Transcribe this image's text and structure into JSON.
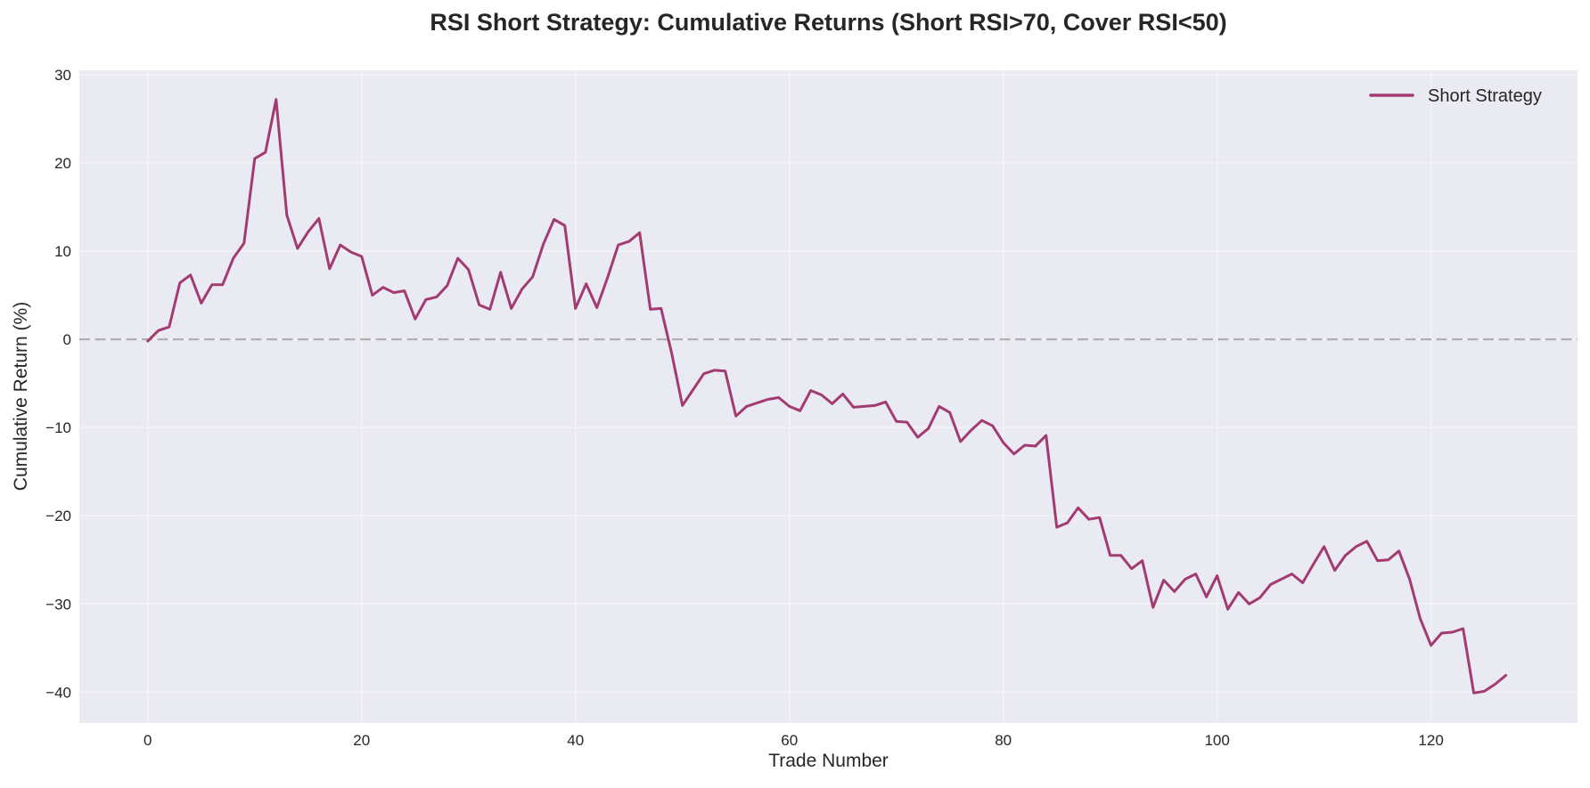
{
  "chart_data": {
    "type": "line",
    "title": "RSI Short Strategy: Cumulative Returns (Short RSI>70, Cover RSI<50)",
    "xlabel": "Trade Number",
    "ylabel": "Cumulative Return (%)",
    "xlim": [
      -6.4,
      133.7
    ],
    "ylim": [
      -43.5,
      30.5
    ],
    "xticks": [
      0,
      20,
      40,
      60,
      80,
      100,
      120
    ],
    "yticks": [
      -40,
      -30,
      -20,
      -10,
      0,
      10,
      20,
      30
    ],
    "xtick_labels": [
      "0",
      "20",
      "40",
      "60",
      "80",
      "100",
      "120"
    ],
    "ytick_labels": [
      "−40",
      "−30",
      "−20",
      "−10",
      "0",
      "10",
      "20",
      "30"
    ],
    "grid": true,
    "legend_position": "upper right",
    "reference_line": {
      "y": 0,
      "style": "dashed",
      "color": "#b0b0b0"
    },
    "series": [
      {
        "name": "Short Strategy",
        "color": "#a23b72",
        "x_start": 0,
        "values": [
          -0.2,
          1.0,
          1.4,
          6.4,
          7.3,
          4.1,
          6.2,
          6.2,
          9.2,
          10.9,
          20.5,
          21.2,
          27.2,
          14.1,
          10.3,
          12.2,
          13.7,
          8.0,
          10.7,
          9.9,
          9.4,
          5.0,
          5.9,
          5.3,
          5.5,
          2.3,
          4.5,
          4.8,
          6.1,
          9.2,
          7.9,
          3.9,
          3.4,
          7.6,
          3.5,
          5.7,
          7.1,
          10.8,
          13.6,
          12.9,
          3.5,
          6.3,
          3.6,
          7.0,
          10.7,
          11.1,
          12.1,
          3.4,
          3.5,
          -1.6,
          -7.5,
          -5.7,
          -3.9,
          -3.5,
          -3.6,
          -8.7,
          -7.6,
          -7.2,
          -6.8,
          -6.6,
          -7.6,
          -8.1,
          -5.8,
          -6.3,
          -7.3,
          -6.2,
          -7.7,
          -7.6,
          -7.5,
          -7.1,
          -9.3,
          -9.4,
          -11.1,
          -10.1,
          -7.6,
          -8.3,
          -11.6,
          -10.3,
          -9.2,
          -9.8,
          -11.7,
          -13.0,
          -12.0,
          -12.1,
          -10.9,
          -21.3,
          -20.8,
          -19.1,
          -20.4,
          -20.2,
          -24.5,
          -24.5,
          -26.0,
          -25.1,
          -30.4,
          -27.3,
          -28.6,
          -27.2,
          -26.6,
          -29.2,
          -26.8,
          -30.6,
          -28.7,
          -30.0,
          -29.3,
          -27.8,
          -27.2,
          -26.6,
          -27.6,
          -25.5,
          -23.5,
          -26.2,
          -24.5,
          -23.5,
          -22.9,
          -25.1,
          -25.0,
          -24.0,
          -27.2,
          -31.7,
          -34.7,
          -33.3,
          -33.2,
          -32.8,
          -40.1,
          -39.9,
          -39.1,
          -38.1
        ]
      }
    ]
  },
  "colors": {
    "plot_background": "#eaeaf2",
    "grid": "#f4f4f8",
    "text": "#262626"
  },
  "legend": {
    "label": "Short Strategy"
  }
}
